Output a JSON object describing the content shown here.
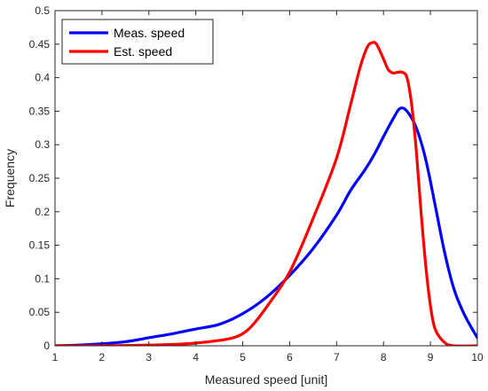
{
  "chart_data": {
    "type": "line",
    "xlabel": "Measured speed [unit]",
    "ylabel": "Frequency",
    "xlim": [
      1,
      10
    ],
    "ylim": [
      0,
      0.5
    ],
    "x_ticks": [
      1,
      2,
      3,
      4,
      5,
      6,
      7,
      8,
      9,
      10
    ],
    "y_ticks": [
      0,
      0.05,
      0.1,
      0.15,
      0.2,
      0.25,
      0.3,
      0.35,
      0.4,
      0.45,
      0.5
    ],
    "x_tick_labels": [
      "1",
      "2",
      "3",
      "4",
      "5",
      "6",
      "7",
      "8",
      "9",
      "10"
    ],
    "y_tick_labels": [
      "0",
      "0.05",
      "0.1",
      "0.15",
      "0.2",
      "0.25",
      "0.3",
      "0.35",
      "0.4",
      "0.45",
      "0.5"
    ],
    "grid": false,
    "box": true,
    "legend_position": "top-left",
    "series": [
      {
        "name": "Meas. speed",
        "color": "#0000FF",
        "x": [
          1.0,
          1.5,
          2.0,
          2.5,
          3.0,
          3.5,
          4.0,
          4.5,
          5.0,
          5.5,
          6.0,
          6.5,
          7.0,
          7.3,
          7.6,
          7.8,
          8.0,
          8.2,
          8.35,
          8.5,
          8.7,
          8.9,
          9.1,
          9.3,
          9.5,
          9.7,
          9.85,
          10.0
        ],
        "y": [
          0.0,
          0.001,
          0.003,
          0.006,
          0.012,
          0.018,
          0.025,
          0.032,
          0.048,
          0.072,
          0.105,
          0.145,
          0.195,
          0.232,
          0.262,
          0.285,
          0.312,
          0.338,
          0.354,
          0.35,
          0.325,
          0.278,
          0.21,
          0.14,
          0.085,
          0.05,
          0.03,
          0.012
        ]
      },
      {
        "name": "Est. speed",
        "color": "#FF0000",
        "x": [
          1.0,
          2.0,
          3.0,
          3.5,
          4.0,
          4.5,
          4.8,
          5.0,
          5.2,
          5.5,
          6.0,
          6.5,
          7.0,
          7.3,
          7.5,
          7.65,
          7.75,
          7.85,
          8.0,
          8.1,
          8.2,
          8.3,
          8.4,
          8.5,
          8.6,
          8.7,
          8.8,
          8.9,
          9.0,
          9.1,
          9.3,
          9.5,
          10.0
        ],
        "y": [
          0.0,
          0.0,
          0.001,
          0.002,
          0.004,
          0.008,
          0.012,
          0.018,
          0.03,
          0.057,
          0.11,
          0.19,
          0.28,
          0.36,
          0.415,
          0.445,
          0.452,
          0.45,
          0.428,
          0.412,
          0.407,
          0.408,
          0.408,
          0.4,
          0.36,
          0.29,
          0.2,
          0.12,
          0.06,
          0.025,
          0.005,
          0.0,
          0.0
        ]
      }
    ]
  }
}
